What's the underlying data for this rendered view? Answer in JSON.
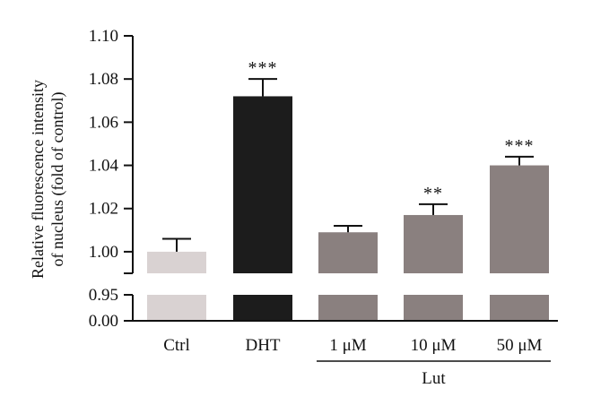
{
  "chart_data": {
    "type": "bar",
    "ylabel_lines": [
      "Relative fluorescence intensity",
      "of nucleus (fold of control)"
    ],
    "categories": [
      "Ctrl",
      "DHT",
      "1 μM",
      "10 μM",
      "50 μM"
    ],
    "values": [
      1.0,
      1.072,
      1.009,
      1.017,
      1.04
    ],
    "errors": [
      0.006,
      0.008,
      0.003,
      0.005,
      0.004
    ],
    "significance": [
      "",
      "***",
      "",
      "**",
      "***"
    ],
    "colors": [
      "#d9d2d2",
      "#1c1c1c",
      "#8a807f",
      "#8a807f",
      "#8a807f"
    ],
    "group": {
      "label": "Lut",
      "members": [
        2,
        3,
        4
      ]
    },
    "upper_axis": {
      "ylim": [
        0.99,
        1.1
      ],
      "ticks": [
        1.1,
        1.08,
        1.06,
        1.04,
        1.02,
        1.0
      ]
    },
    "lower_axis": {
      "ylim": [
        0.0,
        0.95
      ],
      "ticks": [
        0.95,
        0.0
      ]
    },
    "axis_break": true,
    "grid": false
  }
}
